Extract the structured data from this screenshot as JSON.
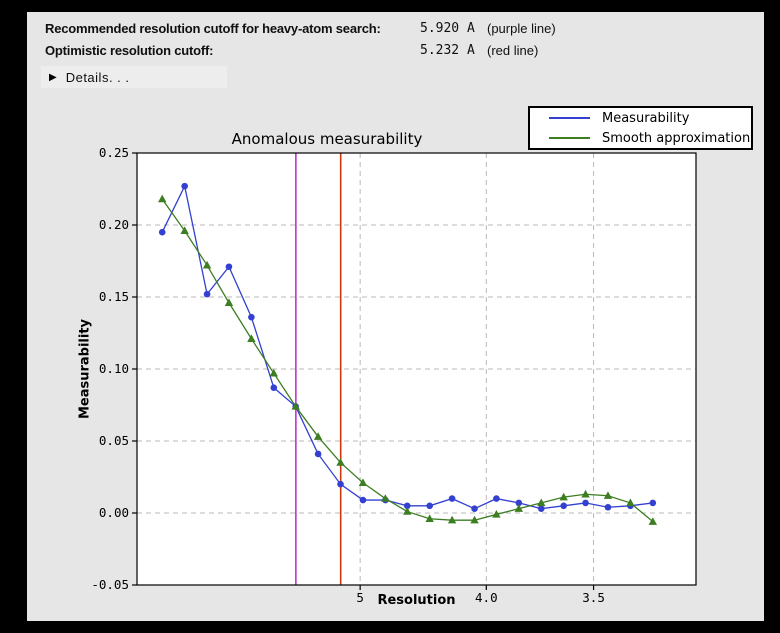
{
  "window": {
    "frame_color": "#000000",
    "panel_bg": "#e6e6e6"
  },
  "header": {
    "rows": [
      {
        "label": "Recommended resolution cutoff for heavy-atom search:",
        "value": "5.920 A",
        "note": "(purple line)"
      },
      {
        "label": "Optimistic resolution cutoff:",
        "value": "5.232 A",
        "note": "(red line)"
      }
    ],
    "details": {
      "icon": "▶",
      "label": "Details. . ."
    }
  },
  "chart_data": {
    "type": "line",
    "title": "Anomalous measurability",
    "xlabel": "Resolution",
    "ylabel": "Measurability",
    "x_axis_units": "Angstrom, plotted on 1/d^2 scale",
    "x_range_d_star_sq": [
      0.0002,
      0.0999
    ],
    "ylim": [
      -0.05,
      0.25
    ],
    "grid": true,
    "legend_position": "upper right, outside axes",
    "x_ticks": [
      {
        "label": "5",
        "d": 5
      },
      {
        "label": "4.0",
        "d": 4
      },
      {
        "label": "3.5",
        "d": 3.5
      }
    ],
    "y_ticks": [
      {
        "label": "0.25",
        "v": 0.25
      },
      {
        "label": "0.20",
        "v": 0.2
      },
      {
        "label": "0.15",
        "v": 0.15
      },
      {
        "label": "0.10",
        "v": 0.1
      },
      {
        "label": "0.05",
        "v": 0.05
      },
      {
        "label": "0.00",
        "v": 0.0
      },
      {
        "label": "-0.05",
        "v": -0.05
      }
    ],
    "x_d_star_sq": [
      0.0047,
      0.0087,
      0.0127,
      0.0166,
      0.0206,
      0.0246,
      0.0285,
      0.0325,
      0.0365,
      0.0405,
      0.0445,
      0.0484,
      0.0524,
      0.0564,
      0.0604,
      0.0643,
      0.0683,
      0.0723,
      0.0763,
      0.0802,
      0.0842,
      0.0882,
      0.0922
    ],
    "series": [
      {
        "name": "Measurability",
        "color": "#3340d0",
        "marker": "circle",
        "values": [
          0.195,
          0.227,
          0.152,
          0.171,
          0.136,
          0.087,
          0.074,
          0.041,
          0.02,
          0.009,
          0.009,
          0.005,
          0.005,
          0.01,
          0.003,
          0.01,
          0.007,
          0.003,
          0.005,
          0.007,
          0.004,
          0.005,
          0.007
        ]
      },
      {
        "name": "Smooth approximation",
        "color": "#3e7e22",
        "marker": "triangle",
        "values": [
          0.218,
          0.196,
          0.172,
          0.146,
          0.121,
          0.097,
          0.074,
          0.053,
          0.035,
          0.021,
          0.01,
          0.001,
          -0.004,
          -0.005,
          -0.005,
          -0.001,
          0.003,
          0.007,
          0.011,
          0.013,
          0.012,
          0.007,
          -0.006
        ]
      }
    ],
    "cutoff_lines": [
      {
        "name": "purple line",
        "resolution_A": 5.92,
        "color": "#bb35cc"
      },
      {
        "name": "red line",
        "resolution_A": 5.232,
        "color": "#cc3a0e"
      }
    ],
    "gridline_color": "#b8b8b8",
    "plot_bg": "#ffffff"
  }
}
